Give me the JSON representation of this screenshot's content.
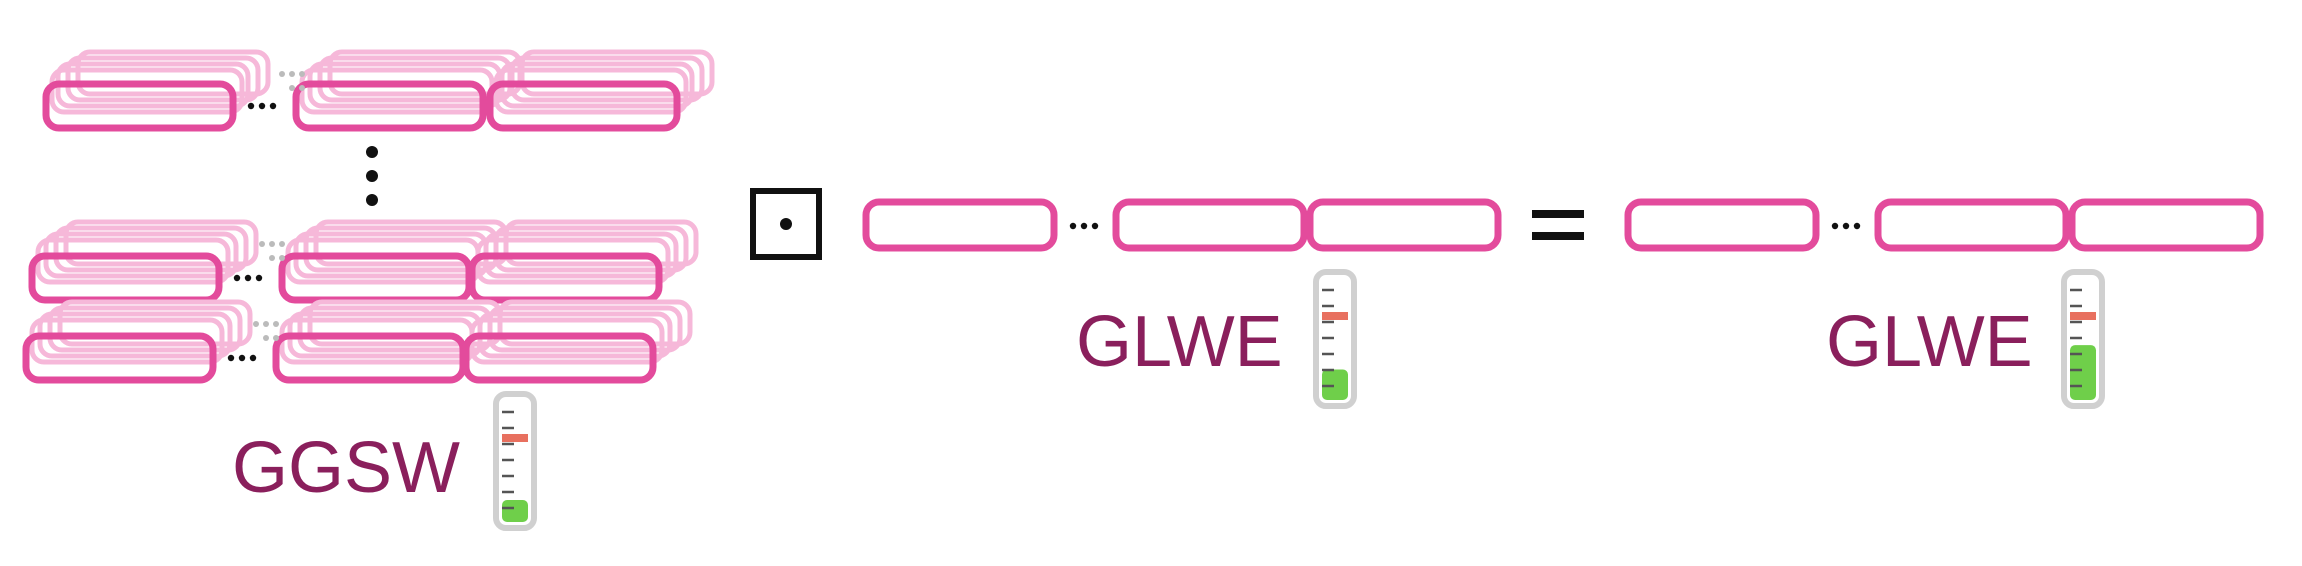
{
  "labels": {
    "ggsw": "GGSW",
    "glwe_input": "GLWE",
    "glwe_output": "GLWE"
  },
  "operators": {
    "external_product": "⊡",
    "equals": "="
  },
  "noise_levels": {
    "ggsw": 0.18,
    "glwe_input": 0.25,
    "glwe_output": 0.45
  },
  "colors": {
    "box_stroke": "#e34b9c",
    "box_shadow": "#f6b8d9",
    "label_text": "#8a1f5c",
    "noise_fill": "#6fcf4a",
    "noise_marker": "#e8705f",
    "thermometer_border": "#d0d0d0",
    "ink": "#111111"
  }
}
